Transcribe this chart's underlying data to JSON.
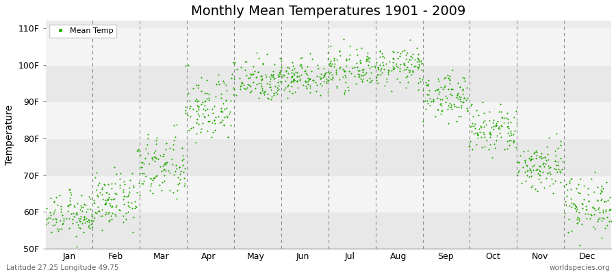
{
  "title": "Monthly Mean Temperatures 1901 - 2009",
  "ylabel": "Temperature",
  "xlabel_bottom_left": "Latitude 27.25 Longitude 49.75",
  "xlabel_bottom_right": "worldspecies.org",
  "legend_label": "Mean Temp",
  "ylim": [
    50,
    112
  ],
  "yticks": [
    50,
    60,
    70,
    80,
    90,
    100,
    110
  ],
  "ytick_labels": [
    "50F",
    "60F",
    "70F",
    "80F",
    "90F",
    "100F",
    "110F"
  ],
  "months": [
    "Jan",
    "Feb",
    "Mar",
    "Apr",
    "May",
    "Jun",
    "Jul",
    "Aug",
    "Sep",
    "Oct",
    "Nov",
    "Dec"
  ],
  "dot_color": "#22aa00",
  "background_color": "#ebebeb",
  "title_fontsize": 14,
  "axis_label_fontsize": 10,
  "tick_fontsize": 9,
  "n_years": 109,
  "monthly_mean_F": [
    59.0,
    63.0,
    72.0,
    88.0,
    96.0,
    97.0,
    98.5,
    99.5,
    91.5,
    82.0,
    72.5,
    62.0
  ],
  "monthly_std_F": [
    2.8,
    3.5,
    4.5,
    4.5,
    3.0,
    2.5,
    2.5,
    2.5,
    3.0,
    3.5,
    3.5,
    4.0
  ],
  "band_colors": [
    "#e8e8e8",
    "#f4f4f4"
  ]
}
